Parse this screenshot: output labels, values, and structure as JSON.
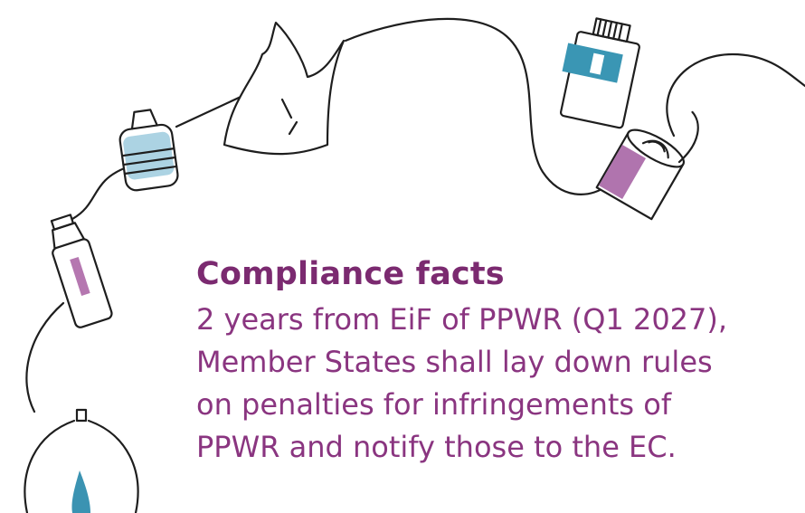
{
  "heading": "Compliance facts",
  "body_lines": [
    "2 years from EiF of PPWR (Q1 2027),",
    "Member States shall lay down rules",
    "on penalties for infringements of",
    "PPWR and notify those to the EC."
  ]
}
